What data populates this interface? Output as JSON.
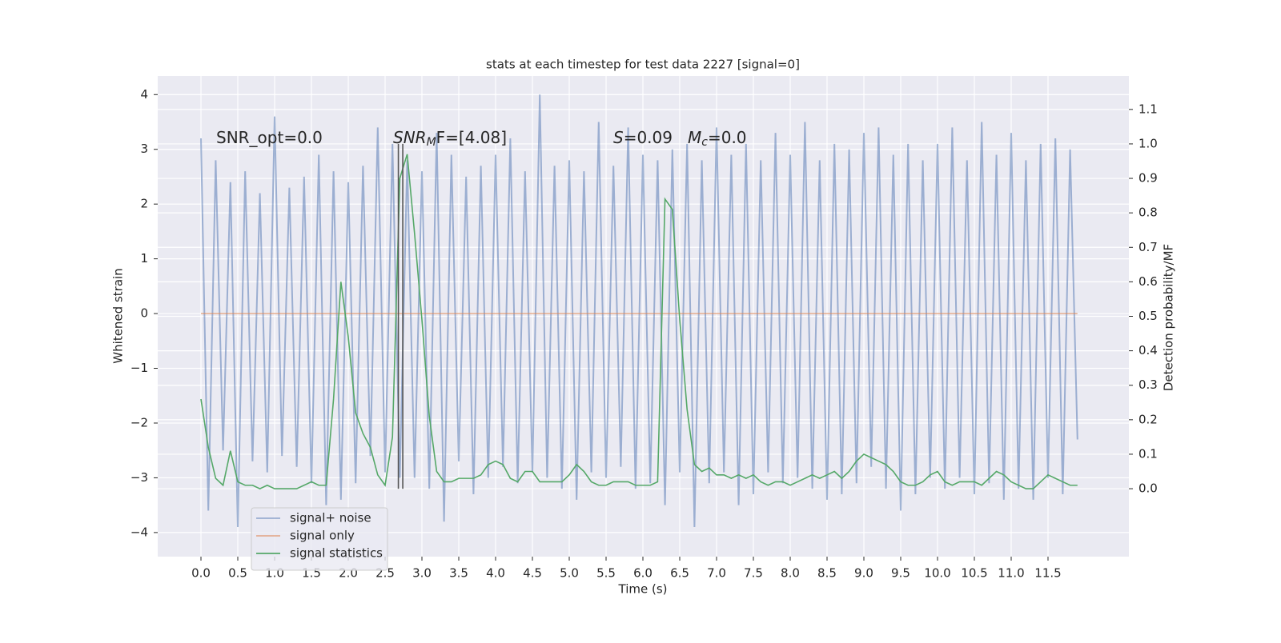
{
  "chart_data": {
    "type": "line",
    "title": "stats at each timestep for test data 2227 [signal=0]",
    "x_label": "Time (s)",
    "y_label": "Whitened strain",
    "y2_label": "Detection probability/MF",
    "x": [
      0,
      0.1,
      0.2,
      0.3,
      0.4,
      0.5,
      0.6,
      0.7,
      0.8,
      0.9,
      1,
      1.1,
      1.2,
      1.3,
      1.4,
      1.5,
      1.6,
      1.7,
      1.8,
      1.9,
      2,
      2.1,
      2.2,
      2.3,
      2.4,
      2.5,
      2.6,
      2.7,
      2.8,
      2.9,
      3,
      3.1,
      3.2,
      3.3,
      3.4,
      3.5,
      3.6,
      3.7,
      3.8,
      3.9,
      4,
      4.1,
      4.2,
      4.3,
      4.4,
      4.5,
      4.6,
      4.7,
      4.8,
      4.9,
      5,
      5.1,
      5.2,
      5.3,
      5.4,
      5.5,
      5.6,
      5.7,
      5.8,
      5.9,
      6,
      6.1,
      6.2,
      6.3,
      6.4,
      6.5,
      6.6,
      6.7,
      6.8,
      6.9,
      7,
      7.1,
      7.2,
      7.3,
      7.4,
      7.5,
      7.6,
      7.7,
      7.8,
      7.9,
      8,
      8.1,
      8.2,
      8.3,
      8.4,
      8.5,
      8.6,
      8.7,
      8.8,
      8.9,
      9,
      9.1,
      9.2,
      9.3,
      9.4,
      9.5,
      9.6,
      9.7,
      9.8,
      9.9,
      10,
      10.1,
      10.2,
      10.3,
      10.4,
      10.5,
      10.6,
      10.7,
      10.8,
      10.9,
      11,
      11.1,
      11.2,
      11.3,
      11.4,
      11.5,
      11.6,
      11.7,
      11.8,
      11.9
    ],
    "series": [
      {
        "name": "signal+ noise",
        "color": "#4c72b0",
        "opacity": 0.5,
        "axis": "y",
        "values": [
          3.2,
          -3.6,
          2.8,
          -2.5,
          2.4,
          -3.9,
          2.6,
          -2.7,
          2.2,
          -2.9,
          3.6,
          -2.6,
          2.3,
          -2.8,
          2.5,
          -3.1,
          2.9,
          -3.5,
          2.6,
          -3.4,
          2.4,
          -3.1,
          2.7,
          -2.6,
          3.4,
          -2.9,
          3.1,
          -3.0,
          2.8,
          -3.0,
          2.6,
          -3.2,
          3.3,
          -3.8,
          2.9,
          -2.7,
          2.5,
          -3.3,
          2.7,
          -3.0,
          2.9,
          -2.8,
          3.2,
          -3.1,
          2.6,
          -2.9,
          4.0,
          -3.0,
          2.7,
          -3.2,
          2.8,
          -3.4,
          2.6,
          -2.9,
          3.5,
          -3.0,
          2.7,
          -2.8,
          3.4,
          -3.2,
          2.9,
          -3.1,
          2.8,
          -3.5,
          3.0,
          -2.9,
          3.1,
          -3.9,
          2.8,
          -3.1,
          3.4,
          -2.9,
          2.9,
          -3.5,
          3.1,
          -3.3,
          2.8,
          -2.9,
          3.3,
          -3.1,
          2.9,
          -3.0,
          3.5,
          -3.2,
          2.8,
          -3.4,
          3.1,
          -3.3,
          3.0,
          -3.1,
          3.3,
          -2.8,
          3.4,
          -3.2,
          2.9,
          -3.6,
          3.1,
          -3.3,
          2.8,
          -3.0,
          3.1,
          -3.2,
          3.4,
          -3.0,
          2.8,
          -3.3,
          3.5,
          -3.1,
          2.9,
          -3.4,
          3.3,
          -3.2,
          2.8,
          -3.4,
          3.1,
          -3.0,
          3.2,
          -3.3,
          3.0,
          -2.3
        ]
      },
      {
        "name": "signal only",
        "color": "#dd8452",
        "opacity": 0.6,
        "axis": "y",
        "values": [
          0,
          0,
          0,
          0,
          0,
          0,
          0,
          0,
          0,
          0,
          0,
          0,
          0,
          0,
          0,
          0,
          0,
          0,
          0,
          0,
          0,
          0,
          0,
          0,
          0,
          0,
          0,
          0,
          0,
          0,
          0,
          0,
          0,
          0,
          0,
          0,
          0,
          0,
          0,
          0,
          0,
          0,
          0,
          0,
          0,
          0,
          0,
          0,
          0,
          0,
          0,
          0,
          0,
          0,
          0,
          0,
          0,
          0,
          0,
          0,
          0,
          0,
          0,
          0,
          0,
          0,
          0,
          0,
          0,
          0,
          0,
          0,
          0,
          0,
          0,
          0,
          0,
          0,
          0,
          0,
          0,
          0,
          0,
          0,
          0,
          0,
          0,
          0,
          0,
          0,
          0,
          0,
          0,
          0,
          0,
          0,
          0,
          0,
          0,
          0,
          0,
          0,
          0,
          0,
          0,
          0,
          0,
          0,
          0,
          0,
          0,
          0,
          0,
          0,
          0,
          0,
          0,
          0,
          0,
          0
        ]
      },
      {
        "name": "signal statistics",
        "color": "#55a868",
        "opacity": 1,
        "axis": "y2",
        "values": [
          0.26,
          0.12,
          0.03,
          0.01,
          0.11,
          0.02,
          0.01,
          0.01,
          0.0,
          0.01,
          0.0,
          0.0,
          0.0,
          0.0,
          0.01,
          0.02,
          0.01,
          0.01,
          0.26,
          0.6,
          0.44,
          0.22,
          0.16,
          0.12,
          0.04,
          0.01,
          0.15,
          0.9,
          0.97,
          0.74,
          0.49,
          0.21,
          0.05,
          0.02,
          0.02,
          0.03,
          0.03,
          0.03,
          0.04,
          0.07,
          0.08,
          0.07,
          0.03,
          0.02,
          0.05,
          0.05,
          0.02,
          0.02,
          0.02,
          0.02,
          0.04,
          0.07,
          0.05,
          0.02,
          0.01,
          0.01,
          0.02,
          0.02,
          0.02,
          0.01,
          0.01,
          0.01,
          0.02,
          0.84,
          0.81,
          0.49,
          0.23,
          0.07,
          0.05,
          0.06,
          0.04,
          0.04,
          0.03,
          0.04,
          0.03,
          0.04,
          0.02,
          0.01,
          0.02,
          0.02,
          0.01,
          0.02,
          0.03,
          0.04,
          0.03,
          0.04,
          0.05,
          0.03,
          0.05,
          0.08,
          0.1,
          0.09,
          0.08,
          0.07,
          0.05,
          0.02,
          0.01,
          0.01,
          0.02,
          0.04,
          0.05,
          0.02,
          0.01,
          0.02,
          0.02,
          0.02,
          0.01,
          0.03,
          0.05,
          0.04,
          0.02,
          0.01,
          0.0,
          0.0,
          0.02,
          0.04,
          0.03,
          0.02,
          0.01,
          0.01
        ]
      }
    ],
    "vlines": [
      2.68,
      2.74
    ],
    "vline_color": "#555555",
    "annotations": [
      {
        "main": "SNR_opt=0.0"
      },
      {
        "main": "SNR",
        "sub": "M",
        "tail": "F=[4.08]"
      },
      {
        "main": "S",
        "tail": "=0.09"
      },
      {
        "main": "M",
        "sub": "c",
        "tail": "=0.0"
      }
    ],
    "xlim": [
      -0.587,
      12.598
    ],
    "ylim": [
      -4.44,
      4.34
    ],
    "y2lim": [
      -0.197,
      1.197
    ],
    "xticks": [
      {
        "value": 0,
        "label": "0.0"
      },
      0.5,
      {
        "value": 1,
        "label": "1.0"
      },
      1.5,
      {
        "value": 2,
        "label": "2.0"
      },
      2.5,
      {
        "value": 3,
        "label": "3.0"
      },
      3.5,
      {
        "value": 4,
        "label": "4.0"
      },
      4.5,
      {
        "value": 5,
        "label": "5.0"
      },
      5.5,
      {
        "value": 6,
        "label": "6.0"
      },
      6.5,
      {
        "value": 7,
        "label": "7.0"
      },
      7.5,
      {
        "value": 8,
        "label": "8.0"
      },
      8.5,
      {
        "value": 9,
        "label": "9.0"
      },
      9.5,
      {
        "value": 10,
        "label": "10.0"
      },
      10.5,
      {
        "value": 11,
        "label": "11.0"
      },
      11.5
    ],
    "yticks": [
      {
        "value": -4,
        "label": "−4"
      },
      {
        "value": -3,
        "label": "−3"
      },
      {
        "value": -2,
        "label": "−2"
      },
      {
        "value": -1,
        "label": "−1"
      },
      0,
      1,
      2,
      3,
      4
    ],
    "y2ticks": [
      {
        "value": 0,
        "label": "0.0"
      },
      0.1,
      0.2,
      0.3,
      0.4,
      0.5,
      0.6,
      0.7,
      0.8,
      0.9,
      {
        "value": 1,
        "label": "1.0"
      },
      1.1
    ],
    "grid": true,
    "legend": "lower left",
    "background": "#eaeaf2"
  }
}
